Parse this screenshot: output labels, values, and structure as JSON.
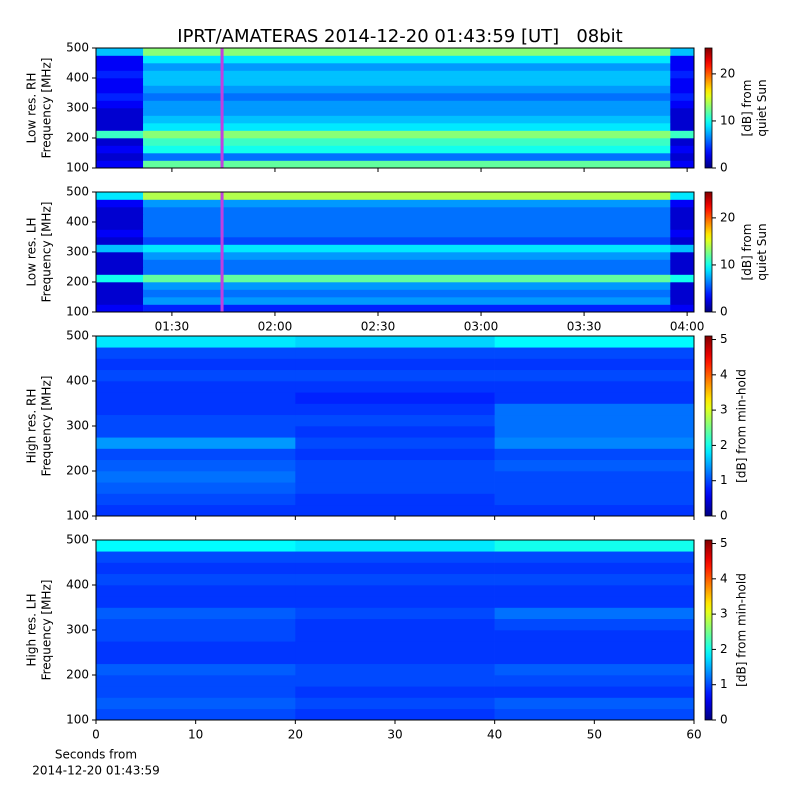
{
  "title": "IPRT/AMATERAS 2014-12-20 01:43:59 [UT]   08bit",
  "chart_data": [
    {
      "type": "heatmap",
      "ylabel": [
        "Low res. RH",
        "Frequency [MHz]"
      ],
      "colorbar_label": [
        "[dB] from",
        "quiet Sun"
      ],
      "colormap": "jet",
      "xlim": [
        67.9,
        242
      ],
      "xticks": [
        {
          "value": 90,
          "label": "01:30"
        },
        {
          "value": 120,
          "label": "02:00"
        },
        {
          "value": 150,
          "label": "02:30"
        },
        {
          "value": 180,
          "label": "03:00"
        },
        {
          "value": 210,
          "label": "03:30"
        },
        {
          "value": 240,
          "label": "04:00"
        }
      ],
      "xticklabels": false,
      "ylim": [
        100,
        500
      ],
      "yticks": [
        100,
        200,
        300,
        400,
        500
      ],
      "clim": [
        0,
        25.5
      ],
      "cticks": [
        0,
        10,
        20
      ],
      "x": [
        67.9,
        81.6,
        235.1,
        242
      ],
      "y": [
        100,
        125,
        150,
        175,
        200,
        225,
        250,
        275,
        300,
        325,
        350,
        375,
        400,
        425,
        450,
        475,
        500
      ],
      "z": [
        [
          3,
          12,
          3
        ],
        [
          2,
          6,
          2
        ],
        [
          3,
          10,
          3
        ],
        [
          2,
          11,
          2
        ],
        [
          11,
          13,
          11
        ],
        [
          2,
          9,
          2
        ],
        [
          2,
          8,
          2
        ],
        [
          2,
          7,
          2
        ],
        [
          3,
          7,
          3
        ],
        [
          4,
          6,
          4
        ],
        [
          3,
          7,
          3
        ],
        [
          3,
          8,
          3
        ],
        [
          4,
          8,
          4
        ],
        [
          3,
          7,
          3
        ],
        [
          3,
          9,
          3
        ],
        [
          8,
          13,
          8
        ]
      ],
      "marker_x": 104.6,
      "marker_color": "#c040e0"
    },
    {
      "type": "heatmap",
      "ylabel": [
        "Low res. LH",
        "Frequency [MHz]"
      ],
      "colorbar_label": [
        "[dB] from",
        "quiet Sun"
      ],
      "colormap": "jet",
      "xlim": [
        67.9,
        242
      ],
      "xticks": [
        {
          "value": 90,
          "label": "01:30"
        },
        {
          "value": 120,
          "label": "02:00"
        },
        {
          "value": 150,
          "label": "02:30"
        },
        {
          "value": 180,
          "label": "03:00"
        },
        {
          "value": 210,
          "label": "03:30"
        },
        {
          "value": 240,
          "label": "04:00"
        }
      ],
      "xticklabels": true,
      "ylim": [
        100,
        500
      ],
      "yticks": [
        100,
        200,
        300,
        400,
        500
      ],
      "clim": [
        0,
        25.5
      ],
      "cticks": [
        0,
        10,
        20
      ],
      "x": [
        67.9,
        81.6,
        235.1,
        242
      ],
      "y": [
        100,
        125,
        150,
        175,
        200,
        225,
        250,
        275,
        300,
        325,
        350,
        375,
        400,
        425,
        450,
        475,
        500
      ],
      "z": [
        [
          3,
          4,
          3
        ],
        [
          2,
          7,
          2
        ],
        [
          2,
          6,
          2
        ],
        [
          2,
          7,
          2
        ],
        [
          10,
          12,
          10
        ],
        [
          2,
          6,
          2
        ],
        [
          2,
          6,
          2
        ],
        [
          2,
          7,
          2
        ],
        [
          8,
          9,
          8
        ],
        [
          2,
          5,
          2
        ],
        [
          3,
          6,
          3
        ],
        [
          2,
          6,
          2
        ],
        [
          2,
          6,
          2
        ],
        [
          2,
          6,
          2
        ],
        [
          3,
          7,
          3
        ],
        [
          9,
          14,
          9
        ]
      ],
      "marker_x": 104.6,
      "marker_color": "#c040e0"
    },
    {
      "type": "heatmap",
      "ylabel": [
        "High res. RH",
        "Frequency [MHz]"
      ],
      "colorbar_label": [
        "[dB] from min-hold"
      ],
      "colormap": "jet",
      "xlim": [
        0,
        60
      ],
      "xticks": [
        0,
        10,
        20,
        30,
        40,
        50,
        60
      ],
      "xticklabels": false,
      "ylim": [
        100,
        500
      ],
      "yticks": [
        100,
        200,
        300,
        400,
        500
      ],
      "clim": [
        0,
        5.1
      ],
      "cticks": [
        0,
        1,
        2,
        3,
        4,
        5
      ],
      "x": [
        0,
        20,
        40,
        60
      ],
      "y": [
        100,
        125,
        150,
        175,
        200,
        225,
        250,
        275,
        300,
        325,
        350,
        375,
        400,
        425,
        450,
        475,
        500
      ],
      "z": [
        [
          0.9,
          0.9,
          0.9
        ],
        [
          1,
          0.9,
          1
        ],
        [
          1.1,
          1,
          1
        ],
        [
          1.2,
          1,
          1
        ],
        [
          1.1,
          1,
          1.1
        ],
        [
          1,
          0.9,
          1
        ],
        [
          1.4,
          1,
          1.3
        ],
        [
          1,
          0.9,
          1.2
        ],
        [
          1,
          1,
          1.2
        ],
        [
          0.9,
          0.9,
          1.2
        ],
        [
          0.9,
          0.8,
          0.9
        ],
        [
          0.9,
          0.9,
          0.9
        ],
        [
          1,
          1,
          1
        ],
        [
          0.9,
          0.9,
          0.9
        ],
        [
          1,
          1,
          1
        ],
        [
          1.8,
          1.7,
          1.9
        ]
      ]
    },
    {
      "type": "heatmap",
      "ylabel": [
        "High res. LH",
        "Frequency [MHz]"
      ],
      "colorbar_label": [
        "[dB] from min-hold"
      ],
      "colormap": "jet",
      "xlabel": [
        "Seconds from",
        "2014-12-20 01:43:59"
      ],
      "xlim": [
        0,
        60
      ],
      "xticks": [
        0,
        10,
        20,
        30,
        40,
        50,
        60
      ],
      "xticklabels": true,
      "ylim": [
        100,
        500
      ],
      "yticks": [
        100,
        200,
        300,
        400,
        500
      ],
      "clim": [
        0,
        5.1
      ],
      "cticks": [
        0,
        1,
        2,
        3,
        4,
        5
      ],
      "x": [
        0,
        20,
        40,
        60
      ],
      "y": [
        100,
        125,
        150,
        175,
        200,
        225,
        250,
        275,
        300,
        325,
        350,
        375,
        400,
        425,
        450,
        475,
        500
      ],
      "z": [
        [
          1,
          0.9,
          1
        ],
        [
          1.1,
          1,
          1.1
        ],
        [
          1,
          0.9,
          0.9
        ],
        [
          1,
          1,
          1
        ],
        [
          1.1,
          1,
          1.1
        ],
        [
          0.9,
          0.9,
          0.9
        ],
        [
          0.9,
          0.9,
          0.9
        ],
        [
          1,
          0.9,
          0.9
        ],
        [
          1,
          0.9,
          1
        ],
        [
          1.1,
          1,
          1.2
        ],
        [
          0.9,
          0.9,
          0.9
        ],
        [
          0.9,
          0.9,
          0.9
        ],
        [
          1,
          1,
          1
        ],
        [
          0.9,
          0.9,
          0.9
        ],
        [
          1,
          1,
          1
        ],
        [
          1.9,
          1.8,
          2
        ]
      ]
    }
  ]
}
